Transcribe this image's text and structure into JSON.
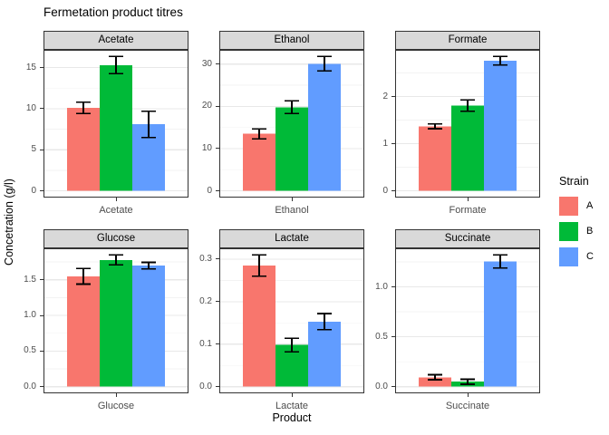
{
  "title": "Fermetation product titres",
  "axes": {
    "x_title": "Product",
    "y_title": "Concetration (g/l)"
  },
  "legend": {
    "title": "Strain",
    "items": [
      {
        "label": "A",
        "color": "#F8766D"
      },
      {
        "label": "B",
        "color": "#00BA38"
      },
      {
        "label": "C",
        "color": "#619CFF"
      }
    ]
  },
  "theme": {
    "strip_bg": "#D9D9D9",
    "panel_bg": "#FFFFFF",
    "panel_border": "#333333",
    "grid_major": "#E8E8E8",
    "grid_minor": "#F3F3F3",
    "axis_text": "#4D4D4D",
    "errorbar_color": "#000000"
  },
  "chart_data": {
    "type": "bar",
    "title": "Fermetation product titres",
    "xlabel": "Product",
    "ylabel": "Concetration (g/l)",
    "legend_title": "Strain",
    "legend_position": "right",
    "grid": true,
    "facet_layout": "2 rows x 3 cols, free y scales",
    "series_names": [
      "A",
      "B",
      "C"
    ],
    "series_colors": [
      "#F8766D",
      "#00BA38",
      "#619CFF"
    ],
    "error_bars": true,
    "facets": [
      {
        "name": "Acetate",
        "x_label": "Acetate",
        "ylim": [
          0,
          17.2
        ],
        "y_ticks": [
          0,
          5,
          10,
          15
        ],
        "y_tick_labels": [
          "0",
          "5",
          "10",
          "15"
        ],
        "values": [
          10.1,
          15.3,
          8.1
        ],
        "errors": [
          0.7,
          1.05,
          1.6
        ]
      },
      {
        "name": "Ethanol",
        "x_label": "Ethanol",
        "ylim": [
          0,
          33.4
        ],
        "y_ticks": [
          0,
          10,
          20,
          30
        ],
        "y_tick_labels": [
          "0",
          "10",
          "20",
          "30"
        ],
        "values": [
          13.5,
          19.8,
          30.1
        ],
        "errors": [
          1.2,
          1.5,
          1.7
        ]
      },
      {
        "name": "Formate",
        "x_label": "Formate",
        "ylim": [
          0,
          3.0
        ],
        "y_ticks": [
          0,
          1,
          2
        ],
        "y_tick_labels": [
          "0",
          "1",
          "2"
        ],
        "values": [
          1.37,
          1.81,
          2.76
        ],
        "errors": [
          0.05,
          0.12,
          0.09
        ]
      },
      {
        "name": "Glucose",
        "x_label": "Glucose",
        "ylim": [
          0,
          1.94
        ],
        "y_ticks": [
          0,
          0.5,
          1.0,
          1.5
        ],
        "y_tick_labels": [
          "0.0",
          "0.5",
          "1.0",
          "1.5"
        ],
        "values": [
          1.55,
          1.78,
          1.7
        ],
        "errors": [
          0.11,
          0.07,
          0.045
        ]
      },
      {
        "name": "Lactate",
        "x_label": "Lactate",
        "ylim": [
          0,
          0.33
        ],
        "y_ticks": [
          0,
          0.1,
          0.2,
          0.3
        ],
        "y_tick_labels": [
          "0.0",
          "0.1",
          "0.2",
          "0.3"
        ],
        "values": [
          0.285,
          0.098,
          0.153
        ],
        "errors": [
          0.025,
          0.016,
          0.019
        ]
      },
      {
        "name": "Succinate",
        "x_label": "Succinate",
        "ylim": [
          0,
          1.39
        ],
        "y_ticks": [
          0,
          0.5,
          1.0
        ],
        "y_tick_labels": [
          "0.0",
          "0.5",
          "1.0"
        ],
        "values": [
          0.095,
          0.05,
          1.255
        ],
        "errors": [
          0.025,
          0.025,
          0.065
        ]
      }
    ]
  }
}
